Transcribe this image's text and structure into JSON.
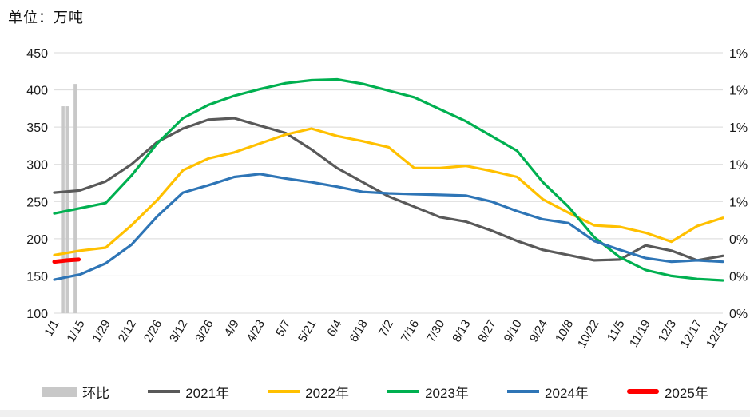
{
  "header": {
    "unit_label": "单位：万吨"
  },
  "chart_data": {
    "type": "line",
    "title": "单位：万吨",
    "x_tick_labels": [
      "1/1",
      "1/15",
      "1/29",
      "2/12",
      "2/26",
      "3/12",
      "3/26",
      "4/9",
      "4/23",
      "5/7",
      "5/21",
      "6/4",
      "6/18",
      "7/2",
      "7/16",
      "7/30",
      "8/13",
      "8/27",
      "9/10",
      "9/24",
      "10/8",
      "10/22",
      "11/5",
      "11/19",
      "12/3",
      "12/17",
      "12/31"
    ],
    "left_axis": {
      "min": 100,
      "max": 450,
      "ticks": [
        450,
        400,
        350,
        300,
        250,
        200,
        150,
        100
      ]
    },
    "right_axis": {
      "tick_labels_top_to_bottom": [
        "1%",
        "1%",
        "1%",
        "1%",
        "1%",
        "0%",
        "0%",
        "0%"
      ]
    },
    "grid_color": "#d9d9d9",
    "axis_text_color": "#1a1a1a",
    "bars": {
      "name": "环比",
      "color": "#c8c8c8",
      "items": [
        {
          "x_frac": 0.33,
          "top_left_axis_equiv": 378,
          "approx_pct": "1.1%"
        },
        {
          "x_frac": 0.52,
          "top_left_axis_equiv": 378,
          "approx_pct": "1.1%"
        },
        {
          "x_frac": 0.82,
          "top_left_axis_equiv": 408,
          "approx_pct": "1.2%"
        }
      ]
    },
    "series": [
      {
        "name": "2021年",
        "color": "#595959",
        "width": 3.2,
        "values": [
          262,
          265,
          277,
          300,
          330,
          348,
          360,
          362,
          352,
          342,
          320,
          295,
          276,
          257,
          243,
          229,
          223,
          211,
          197,
          185,
          178,
          171,
          172,
          191,
          184,
          171,
          177
        ]
      },
      {
        "name": "2022年",
        "color": "#ffc000",
        "width": 3.2,
        "values": [
          178,
          184,
          188,
          218,
          252,
          292,
          308,
          316,
          328,
          340,
          348,
          338,
          331,
          323,
          295,
          295,
          298,
          291,
          283,
          253,
          235,
          218,
          216,
          208,
          196,
          217,
          228
        ]
      },
      {
        "name": "2023年",
        "color": "#00b050",
        "width": 3.2,
        "values": [
          234,
          241,
          248,
          285,
          328,
          362,
          380,
          392,
          401,
          409,
          413,
          414,
          408,
          399,
          390,
          374,
          358,
          338,
          318,
          276,
          243,
          202,
          175,
          158,
          150,
          146,
          144
        ]
      },
      {
        "name": "2024年",
        "color": "#2e75b6",
        "width": 3.2,
        "values": [
          145,
          152,
          167,
          192,
          230,
          262,
          272,
          283,
          287,
          281,
          276,
          270,
          263,
          261,
          260,
          259,
          258,
          250,
          237,
          226,
          221,
          197,
          185,
          174,
          169,
          171,
          169
        ]
      },
      {
        "name": "2025年",
        "color": "#ff0000",
        "width": 5,
        "x_ticks": [
          0,
          0.5,
          0.95
        ],
        "values": [
          169,
          171,
          172
        ]
      }
    ],
    "legend": [
      {
        "label": "环比",
        "swatch": "bar",
        "color": "#c8c8c8"
      },
      {
        "label": "2021年",
        "swatch": "line",
        "color": "#595959"
      },
      {
        "label": "2022年",
        "swatch": "line",
        "color": "#ffc000"
      },
      {
        "label": "2023年",
        "swatch": "line",
        "color": "#00b050"
      },
      {
        "label": "2024年",
        "swatch": "line",
        "color": "#2e75b6"
      },
      {
        "label": "2025年",
        "swatch": "line-thick",
        "color": "#ff0000"
      }
    ]
  }
}
